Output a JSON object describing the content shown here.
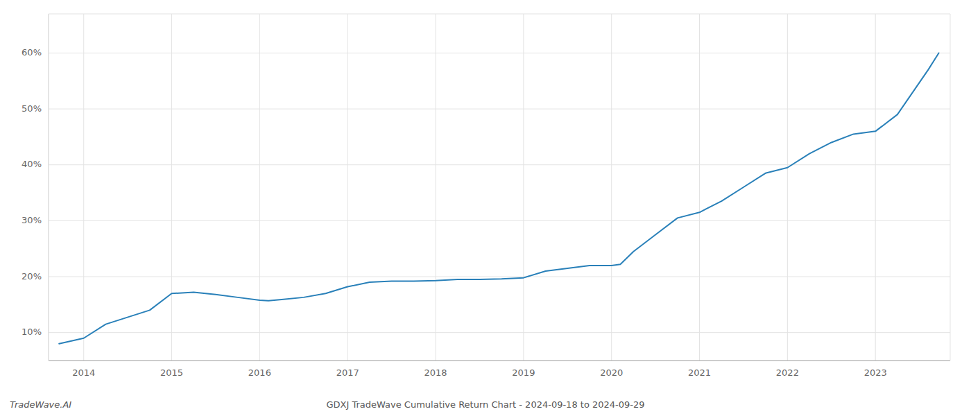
{
  "chart_data": {
    "type": "line",
    "title": "GDXJ TradeWave Cumulative Return Chart - 2024-09-18 to 2024-09-29",
    "annotations": [
      "TradeWave.AI"
    ],
    "color": "#2980b9",
    "grid": true,
    "x": [
      2013.72,
      2014.0,
      2014.25,
      2014.75,
      2015.0,
      2015.25,
      2015.5,
      2015.75,
      2016.0,
      2016.1,
      2016.25,
      2016.5,
      2016.75,
      2017.0,
      2017.25,
      2017.5,
      2017.75,
      2018.0,
      2018.25,
      2018.5,
      2018.75,
      2019.0,
      2019.25,
      2019.5,
      2019.75,
      2020.0,
      2020.1,
      2020.25,
      2020.5,
      2020.75,
      2021.0,
      2021.25,
      2021.5,
      2021.75,
      2022.0,
      2022.25,
      2022.5,
      2022.75,
      2023.0,
      2023.25,
      2023.6,
      2023.72
    ],
    "values": [
      8.0,
      9.0,
      11.5,
      14.0,
      17.0,
      17.2,
      16.8,
      16.3,
      15.8,
      15.7,
      15.9,
      16.3,
      17.0,
      18.2,
      19.0,
      19.2,
      19.2,
      19.3,
      19.5,
      19.5,
      19.6,
      19.8,
      21.0,
      21.5,
      22.0,
      22.0,
      22.2,
      24.5,
      27.5,
      30.5,
      31.5,
      33.5,
      36.0,
      38.5,
      39.5,
      42.0,
      44.0,
      45.5,
      46.0,
      49.0,
      57.0,
      60.0
    ],
    "xlim": [
      2013.6,
      2023.85
    ],
    "ylim": [
      5,
      67
    ],
    "xticks": [
      2014,
      2015,
      2016,
      2017,
      2018,
      2019,
      2020,
      2021,
      2022,
      2023
    ],
    "yticks": [
      {
        "value": 10,
        "label": "10%"
      },
      {
        "value": 20,
        "label": "20%"
      },
      {
        "value": 30,
        "label": "30%"
      },
      {
        "value": 40,
        "label": "40%"
      },
      {
        "value": 50,
        "label": "50%"
      },
      {
        "value": 60,
        "label": "60%"
      }
    ]
  }
}
